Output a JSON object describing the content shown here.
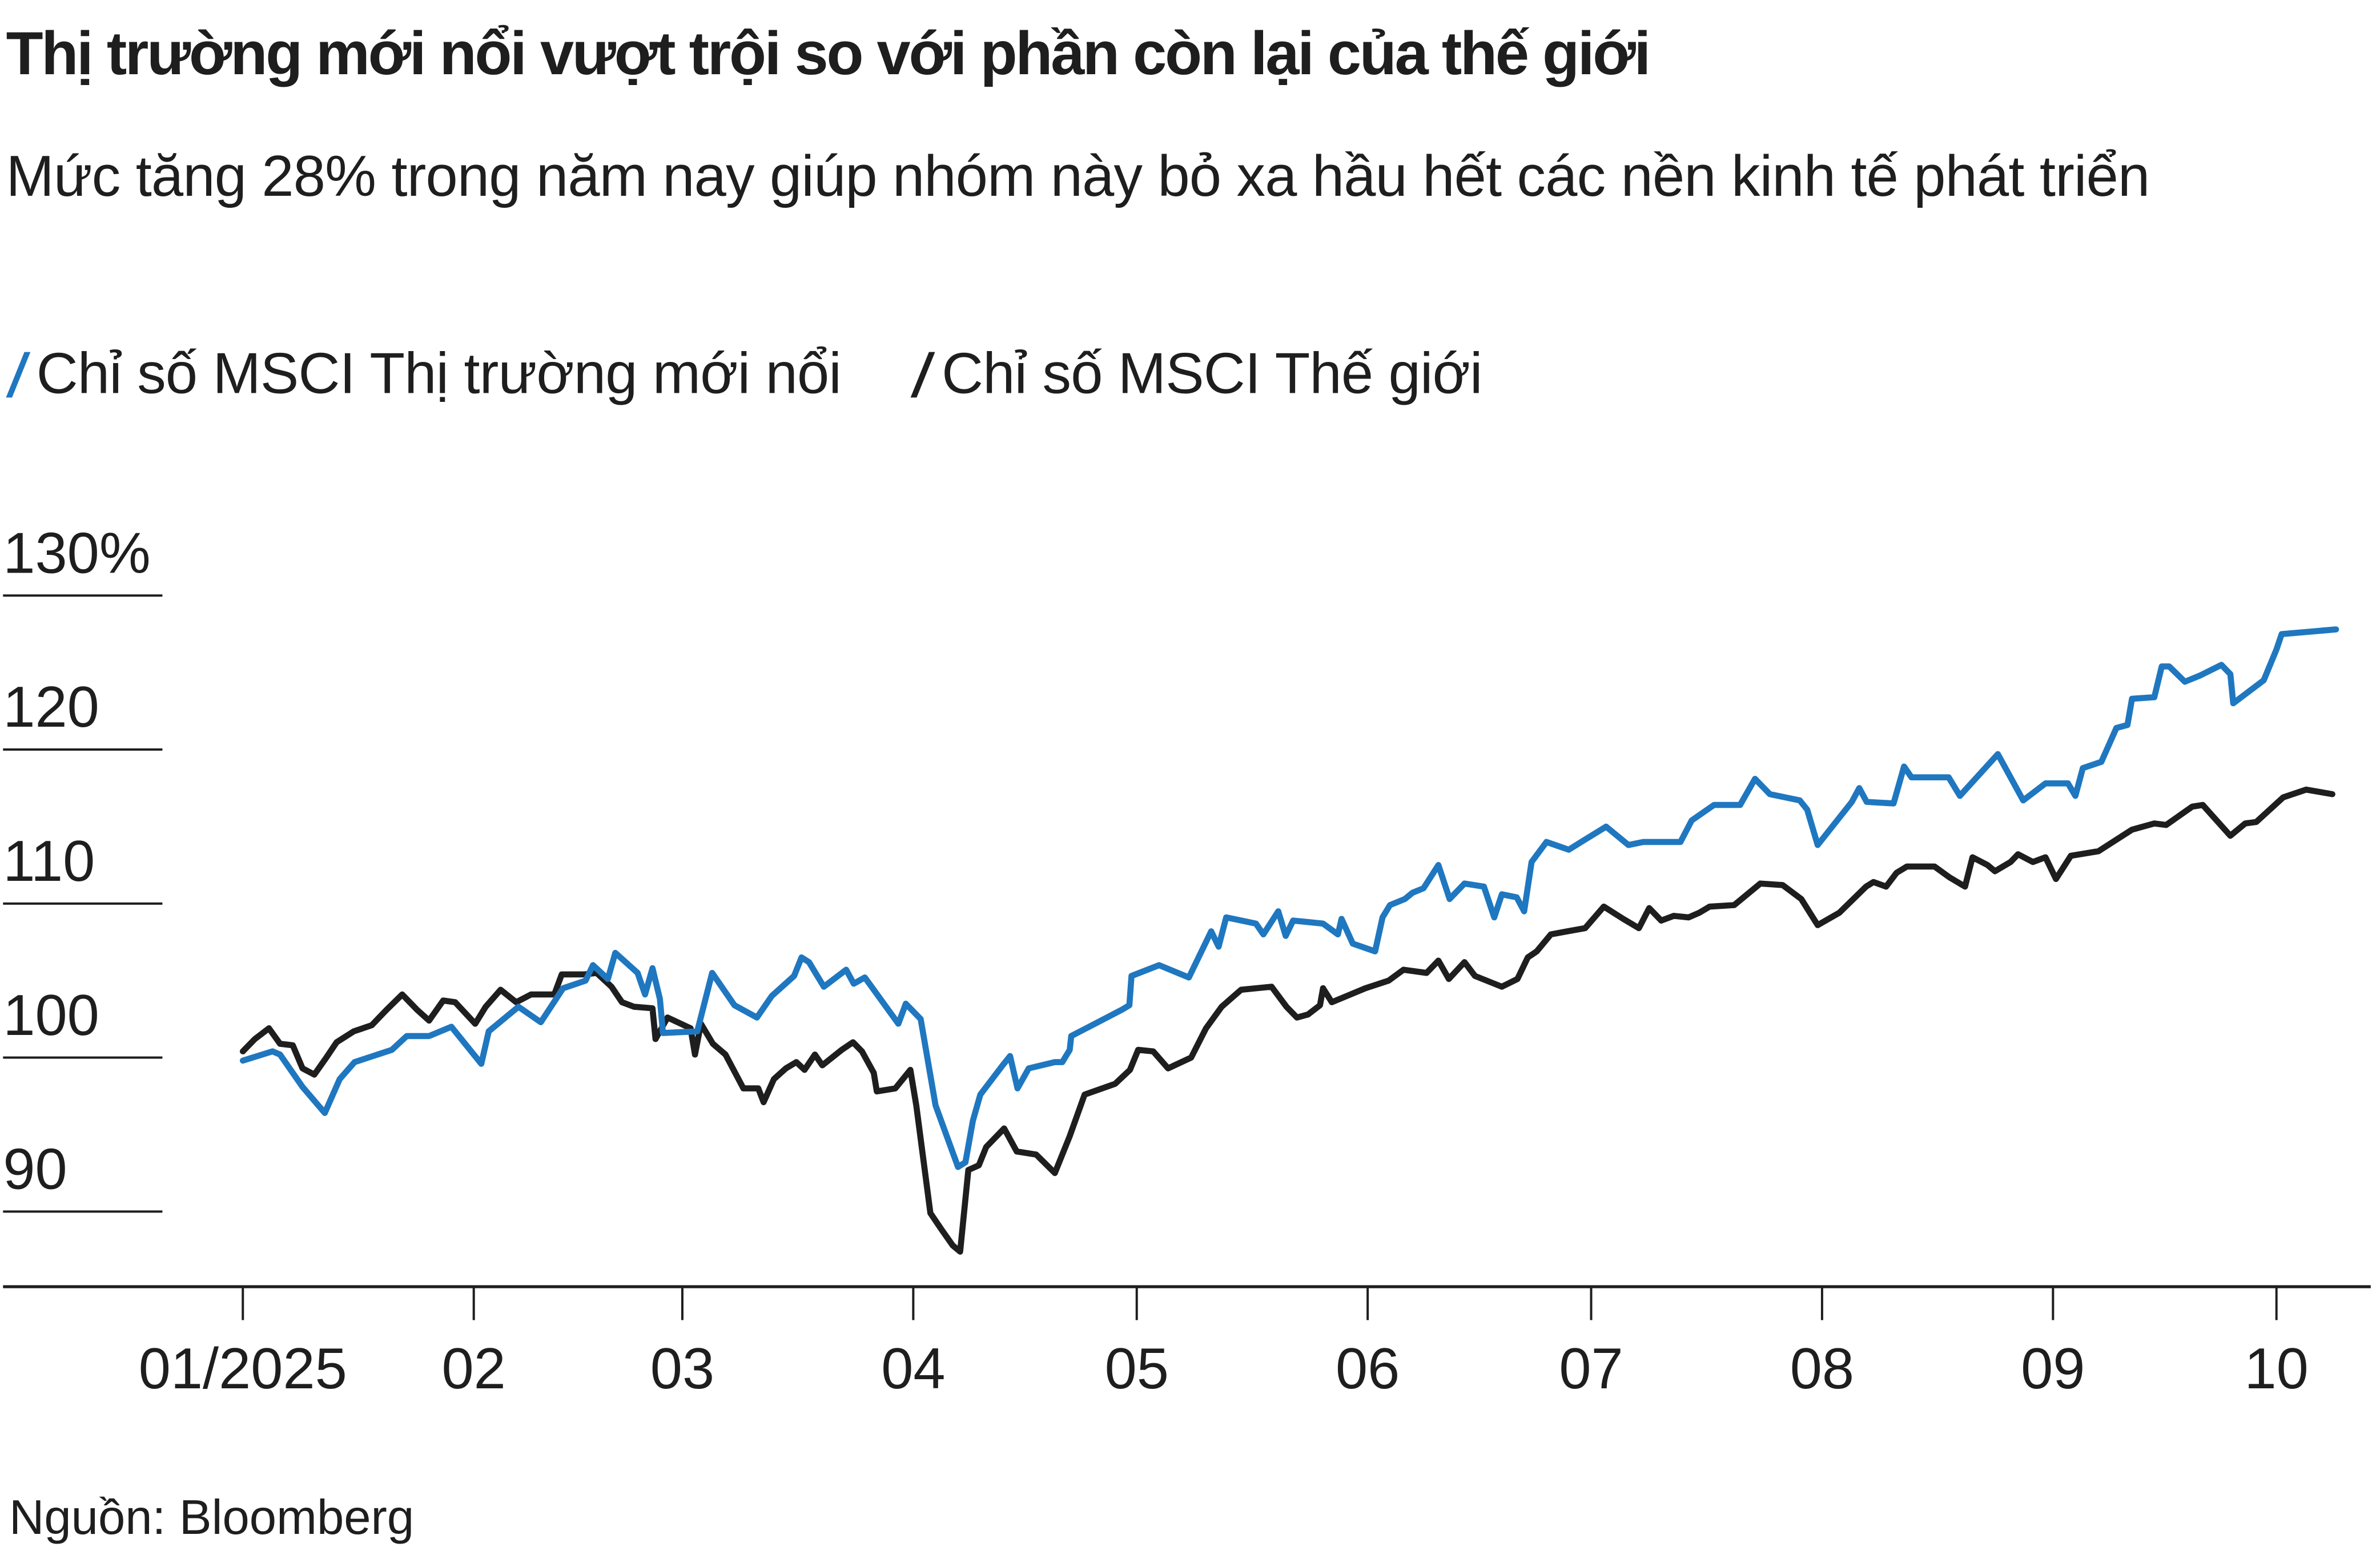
{
  "chart_data": {
    "type": "line",
    "title": "Thị trường mới nổi vượt trội so với phần còn lại của thế giới",
    "subtitle": "Mức tăng 28% trong năm nay giúp nhóm này bỏ xa hầu hết các nền kinh tế phát triển",
    "source": "Nguồn: Bloomberg",
    "xlabel": "",
    "ylabel": "",
    "x_unit": "days since 2025-01-01",
    "xlim": [
      0,
      290
    ],
    "ylim": [
      85,
      132
    ],
    "grid": true,
    "legend_position": "top-left",
    "y_ticks": [
      {
        "value": 130,
        "label": "130%"
      },
      {
        "value": 120,
        "label": "120"
      },
      {
        "value": 110,
        "label": "110"
      },
      {
        "value": 100,
        "label": "100"
      },
      {
        "value": 90,
        "label": "90"
      }
    ],
    "x_ticks": [
      {
        "value": 0,
        "label": "01/2025"
      },
      {
        "value": 31,
        "label": "02"
      },
      {
        "value": 59,
        "label": "03"
      },
      {
        "value": 90,
        "label": "04"
      },
      {
        "value": 120,
        "label": "05"
      },
      {
        "value": 151,
        "label": "06"
      },
      {
        "value": 181,
        "label": "07"
      },
      {
        "value": 212,
        "label": "08"
      },
      {
        "value": 243,
        "label": "09"
      },
      {
        "value": 273,
        "label": "10"
      }
    ],
    "series": [
      {
        "name": "Chỉ số MSCI Thị trường mới nổi",
        "color": "#1f77c0",
        "points": [
          [
            0,
            99.8
          ],
          [
            4,
            100.4
          ],
          [
            5,
            100.2
          ],
          [
            8,
            98.1
          ],
          [
            11,
            96.4
          ],
          [
            13,
            98.6
          ],
          [
            15,
            99.7
          ],
          [
            20,
            100.5
          ],
          [
            22,
            101.4
          ],
          [
            25,
            101.4
          ],
          [
            28,
            102.0
          ],
          [
            32,
            99.6
          ],
          [
            33,
            101.7
          ],
          [
            37,
            103.3
          ],
          [
            40,
            102.3
          ],
          [
            43,
            104.5
          ],
          [
            46,
            105.0
          ],
          [
            47,
            106.0
          ],
          [
            49,
            105.1
          ],
          [
            50,
            106.8
          ],
          [
            53,
            105.5
          ],
          [
            54,
            104.1
          ],
          [
            55,
            105.8
          ],
          [
            56,
            103.8
          ],
          [
            56.4,
            101.6
          ],
          [
            61,
            101.7
          ],
          [
            63,
            105.5
          ],
          [
            66,
            103.4
          ],
          [
            69,
            102.6
          ],
          [
            71,
            104.0
          ],
          [
            74,
            105.3
          ],
          [
            75,
            106.5
          ],
          [
            76,
            106.2
          ],
          [
            78,
            104.6
          ],
          [
            81,
            105.7
          ],
          [
            82,
            104.8
          ],
          [
            83.5,
            105.2
          ],
          [
            88,
            102.2
          ],
          [
            89,
            103.5
          ],
          [
            91,
            102.5
          ],
          [
            93,
            96.9
          ],
          [
            96,
            92.9
          ],
          [
            97,
            93.2
          ],
          [
            98,
            95.9
          ],
          [
            99,
            97.6
          ],
          [
            102,
            99.5
          ],
          [
            103,
            100.1
          ],
          [
            104,
            98.0
          ],
          [
            105.5,
            99.3
          ],
          [
            109,
            99.7
          ],
          [
            110,
            99.7
          ],
          [
            111,
            100.5
          ],
          [
            111.2,
            101.4
          ],
          [
            118,
            103.1
          ],
          [
            119,
            103.4
          ],
          [
            119.3,
            105.3
          ],
          [
            123,
            106.0
          ],
          [
            127,
            105.2
          ],
          [
            130,
            108.2
          ],
          [
            131,
            107.2
          ],
          [
            132,
            109.1
          ],
          [
            136,
            108.7
          ],
          [
            137,
            108.0
          ],
          [
            139,
            109.5
          ],
          [
            140,
            107.9
          ],
          [
            141,
            108.9
          ],
          [
            145,
            108.7
          ],
          [
            147,
            108.0
          ],
          [
            147.5,
            109.0
          ],
          [
            149,
            107.4
          ],
          [
            152,
            106.9
          ],
          [
            153,
            109.1
          ],
          [
            154,
            109.9
          ],
          [
            156,
            110.3
          ],
          [
            157,
            110.7
          ],
          [
            158.5,
            111.0
          ],
          [
            160.5,
            112.5
          ],
          [
            162,
            110.3
          ],
          [
            164,
            111.3
          ],
          [
            166.6,
            111.1
          ],
          [
            168,
            109.1
          ],
          [
            169,
            110.6
          ],
          [
            171,
            110.4
          ],
          [
            172,
            109.5
          ],
          [
            173,
            112.7
          ],
          [
            175,
            114.0
          ],
          [
            178,
            113.5
          ],
          [
            180,
            114.1
          ],
          [
            183,
            115.0
          ],
          [
            186,
            113.8
          ],
          [
            188,
            114.0
          ],
          [
            193,
            114.0
          ],
          [
            194.5,
            115.4
          ],
          [
            197.5,
            116.4
          ],
          [
            201,
            116.4
          ],
          [
            203,
            118.1
          ],
          [
            205,
            117.1
          ],
          [
            209,
            116.7
          ],
          [
            210,
            116.1
          ],
          [
            211.4,
            113.8
          ],
          [
            216,
            116.6
          ],
          [
            217,
            117.5
          ],
          [
            218,
            116.6
          ],
          [
            221.6,
            116.5
          ],
          [
            223,
            118.9
          ],
          [
            224,
            118.2
          ],
          [
            229,
            118.2
          ],
          [
            230.5,
            117.0
          ],
          [
            235.6,
            119.7
          ],
          [
            239,
            116.7
          ],
          [
            242,
            117.8
          ],
          [
            245,
            117.8
          ],
          [
            246,
            117.0
          ],
          [
            247,
            118.8
          ],
          [
            249.5,
            119.2
          ],
          [
            251.5,
            121.4
          ],
          [
            253,
            121.6
          ],
          [
            253.6,
            123.3
          ],
          [
            256.6,
            123.4
          ],
          [
            257.6,
            125.4
          ],
          [
            258.6,
            125.4
          ],
          [
            260.7,
            124.4
          ],
          [
            262.7,
            124.8
          ],
          [
            265.6,
            125.5
          ],
          [
            266.8,
            124.9
          ],
          [
            267.2,
            123.0
          ],
          [
            271.3,
            124.5
          ],
          [
            273,
            126.5
          ],
          [
            273.7,
            127.5
          ],
          [
            281,
            127.8
          ]
        ]
      },
      {
        "name": "Chỉ số MSCI Thế giới",
        "color": "#1e1e1e",
        "points": [
          [
            0,
            100.4
          ],
          [
            1.6,
            101.2
          ],
          [
            3.5,
            101.9
          ],
          [
            5,
            100.9
          ],
          [
            6.7,
            100.8
          ],
          [
            8,
            99.3
          ],
          [
            9.6,
            98.9
          ],
          [
            11.2,
            100.0
          ],
          [
            12.6,
            101.0
          ],
          [
            14.9,
            101.7
          ],
          [
            17.3,
            102.1
          ],
          [
            19.3,
            103.1
          ],
          [
            21.4,
            104.1
          ],
          [
            23.4,
            103.1
          ],
          [
            25,
            102.4
          ],
          [
            26.9,
            103.7
          ],
          [
            28.5,
            103.6
          ],
          [
            31.2,
            102.2
          ],
          [
            32.6,
            103.3
          ],
          [
            34.6,
            104.4
          ],
          [
            36.7,
            103.6
          ],
          [
            38.7,
            104.1
          ],
          [
            41.8,
            104.1
          ],
          [
            42.8,
            105.4
          ],
          [
            45.8,
            105.4
          ],
          [
            47.5,
            105.5
          ],
          [
            49.5,
            104.6
          ],
          [
            50.9,
            103.6
          ],
          [
            52.5,
            103.3
          ],
          [
            55,
            103.2
          ],
          [
            55.4,
            101.2
          ],
          [
            57,
            102.6
          ],
          [
            60.1,
            101.9
          ],
          [
            60.7,
            100.2
          ],
          [
            61.5,
            102.2
          ],
          [
            63.1,
            100.9
          ],
          [
            64.8,
            100.2
          ],
          [
            67.2,
            98.0
          ],
          [
            69.2,
            98.0
          ],
          [
            69.9,
            97.1
          ],
          [
            71.3,
            98.6
          ],
          [
            72.9,
            99.3
          ],
          [
            74.3,
            99.7
          ],
          [
            75.4,
            99.2
          ],
          [
            76.8,
            100.2
          ],
          [
            77.8,
            99.5
          ],
          [
            80.4,
            100.5
          ],
          [
            81.9,
            101.0
          ],
          [
            83.1,
            100.4
          ],
          [
            84.7,
            99.0
          ],
          [
            85.1,
            97.8
          ],
          [
            87.6,
            98.0
          ],
          [
            89.6,
            99.2
          ],
          [
            90.4,
            96.9
          ],
          [
            92.3,
            89.9
          ],
          [
            93.7,
            88.9
          ],
          [
            95.3,
            87.8
          ],
          [
            96.3,
            87.4
          ],
          [
            97.4,
            92.7
          ],
          [
            98.8,
            93.0
          ],
          [
            99.8,
            94.2
          ],
          [
            102.2,
            95.4
          ],
          [
            103.9,
            93.9
          ],
          [
            106.5,
            93.7
          ],
          [
            109,
            92.5
          ],
          [
            111,
            94.9
          ],
          [
            113,
            97.6
          ],
          [
            117.1,
            98.3
          ],
          [
            119.1,
            99.2
          ],
          [
            120.2,
            100.5
          ],
          [
            122.2,
            100.4
          ],
          [
            124.2,
            99.3
          ],
          [
            127.3,
            100.0
          ],
          [
            129.3,
            101.9
          ],
          [
            131.4,
            103.3
          ],
          [
            134,
            104.4
          ],
          [
            138.1,
            104.6
          ],
          [
            140.1,
            103.3
          ],
          [
            141.5,
            102.6
          ],
          [
            143,
            102.8
          ],
          [
            144.6,
            103.4
          ],
          [
            145,
            104.5
          ],
          [
            146.2,
            103.6
          ],
          [
            150.7,
            104.5
          ],
          [
            153.8,
            105.0
          ],
          [
            155.8,
            105.7
          ],
          [
            158.9,
            105.5
          ],
          [
            160.5,
            106.3
          ],
          [
            161.9,
            105.1
          ],
          [
            164,
            106.2
          ],
          [
            165.4,
            105.3
          ],
          [
            169,
            104.6
          ],
          [
            171.1,
            105.1
          ],
          [
            172.5,
            106.5
          ],
          [
            173.7,
            106.9
          ],
          [
            175.6,
            108.0
          ],
          [
            177.8,
            108.2
          ],
          [
            180.2,
            108.4
          ],
          [
            182.7,
            109.8
          ],
          [
            185.3,
            109.0
          ],
          [
            187.4,
            108.4
          ],
          [
            188.8,
            109.7
          ],
          [
            190.4,
            108.9
          ],
          [
            192.1,
            109.2
          ],
          [
            194.1,
            109.1
          ],
          [
            195.5,
            109.4
          ],
          [
            196.9,
            109.8
          ],
          [
            200.2,
            109.9
          ],
          [
            203.7,
            111.3
          ],
          [
            206.7,
            111.2
          ],
          [
            209.2,
            110.3
          ],
          [
            211.4,
            108.6
          ],
          [
            214.3,
            109.4
          ],
          [
            217.9,
            111.1
          ],
          [
            218.9,
            111.4
          ],
          [
            220.6,
            111.1
          ],
          [
            222,
            112.0
          ],
          [
            223.4,
            112.4
          ],
          [
            227.1,
            112.4
          ],
          [
            229.1,
            111.7
          ],
          [
            231.2,
            111.1
          ],
          [
            232.2,
            113.0
          ],
          [
            234.2,
            112.5
          ],
          [
            235.2,
            112.1
          ],
          [
            237.3,
            112.7
          ],
          [
            238.3,
            113.2
          ],
          [
            240.3,
            112.7
          ],
          [
            242,
            113.0
          ],
          [
            243.4,
            111.6
          ],
          [
            245.4,
            113.1
          ],
          [
            249.1,
            113.4
          ],
          [
            253.6,
            114.8
          ],
          [
            256.6,
            115.2
          ],
          [
            258.2,
            115.1
          ],
          [
            261.7,
            116.3
          ],
          [
            263.1,
            116.4
          ],
          [
            266.8,
            114.4
          ],
          [
            268.8,
            115.2
          ],
          [
            270.3,
            115.3
          ],
          [
            273.9,
            116.9
          ],
          [
            277,
            117.4
          ],
          [
            280.5,
            117.1
          ]
        ]
      }
    ]
  }
}
